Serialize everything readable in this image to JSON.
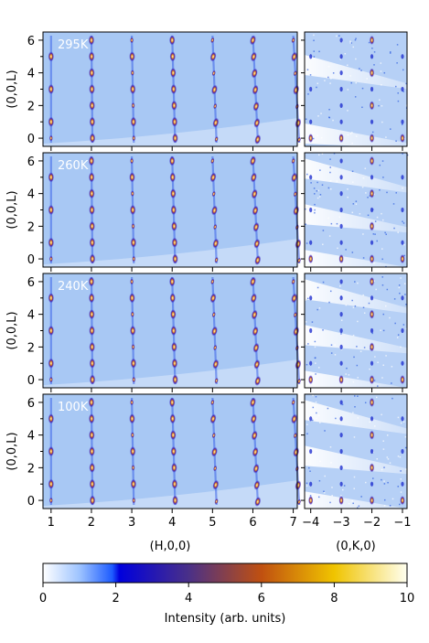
{
  "chart_data": {
    "type": "heatmap",
    "panels_left": {
      "xlabel": "(H,0,0)",
      "ylabel": "(0,0,L)",
      "xlim": [
        0.8,
        7.1
      ],
      "ylim": [
        -0.5,
        6.5
      ],
      "xticks": [
        1,
        2,
        3,
        4,
        5,
        6,
        7
      ],
      "yticks": [
        0,
        2,
        4,
        6
      ],
      "peak_columns_H": [
        1,
        2,
        3,
        4,
        5,
        6,
        7
      ]
    },
    "panels_right": {
      "xlabel": "(0,K,0)",
      "xlim": [
        -4.2,
        -0.85
      ],
      "ylim": [
        -0.5,
        6.5
      ],
      "xticks": [
        -4,
        -3,
        -2,
        -1
      ],
      "xtick_labels": [
        "−4",
        "−3",
        "−2",
        "−1"
      ],
      "peak_columns_K": [
        -4,
        -3,
        -2,
        -1
      ]
    },
    "temperatures": [
      "295K",
      "260K",
      "240K",
      "100K"
    ],
    "colorbar": {
      "label": "Intensity (arb. units)",
      "range": [
        0,
        10
      ],
      "ticks": [
        0,
        2,
        4,
        6,
        8,
        10
      ],
      "colors": [
        "#ffffff",
        "#4a90ff",
        "#0000cc",
        "#7a2a8a",
        "#c85010",
        "#f0c000",
        "#fffff0"
      ]
    }
  }
}
